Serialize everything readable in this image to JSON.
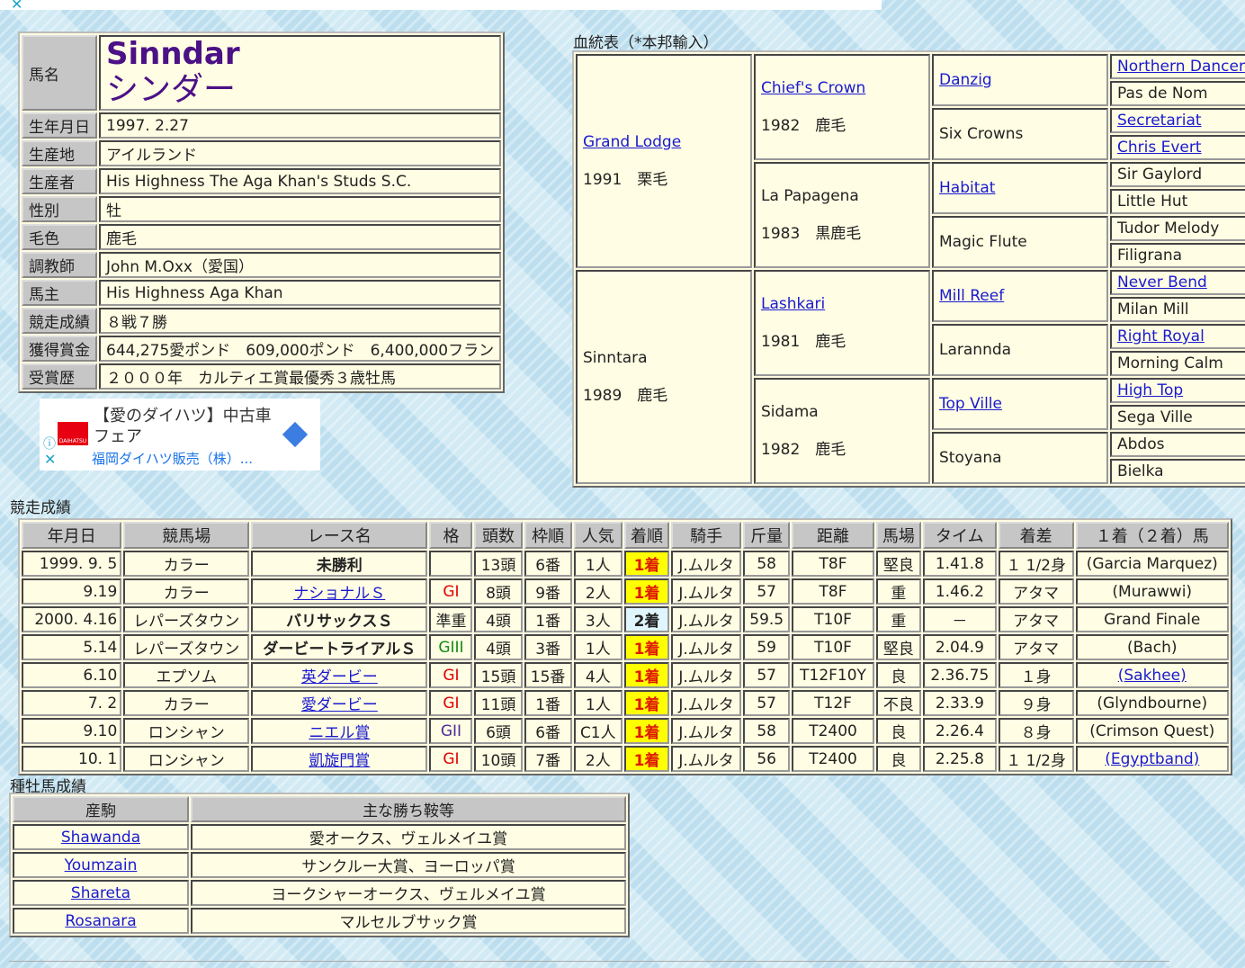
{
  "profile": {
    "name_label": "馬名",
    "name_en": "Sinndar",
    "name_ja": "シンダー",
    "rows": [
      {
        "label": "生年月日",
        "value": "1997. 2.27"
      },
      {
        "label": "生産地",
        "value": "アイルランド"
      },
      {
        "label": "生産者",
        "value": "His Highness The Aga Khan's Studs S.C."
      },
      {
        "label": "性別",
        "value": "牡"
      },
      {
        "label": "毛色",
        "value": "鹿毛"
      },
      {
        "label": "調教師",
        "value": "John M.Oxx（愛国）"
      },
      {
        "label": "馬主",
        "value": "His Highness Aga Khan"
      },
      {
        "label": "競走成績",
        "value": "８戦７勝"
      },
      {
        "label": "獲得賞金",
        "value": "644,275愛ポンド　609,000ポンド　6,400,000フラン"
      },
      {
        "label": "受賞歴",
        "value": "２０００年　カルティエ賞最優秀３歳牡馬"
      }
    ]
  },
  "ad": {
    "title": "【愛のダイハツ】中古車フェア",
    "sponsor": "福岡ダイハツ販売（株）...",
    "logo": "DAIHATSU"
  },
  "pedigree": {
    "title": "血統表（*本邦輸入）",
    "sire": {
      "name": "Grand Lodge",
      "info": "1991　栗毛"
    },
    "dam": {
      "name": "Sinntara",
      "info": "1989　鹿毛"
    },
    "g2": [
      {
        "name": "Chief's Crown",
        "info": "1982　鹿毛"
      },
      {
        "name": "La Papagena",
        "info": "1983　黒鹿毛"
      },
      {
        "name": "Lashkari",
        "info": "1981　鹿毛"
      },
      {
        "name": "Sidama",
        "info": "1982　鹿毛"
      }
    ],
    "g3": [
      "Danzig",
      "Six Crowns",
      "Habitat",
      "Magic Flute",
      "Mill Reef",
      "Larannda",
      "Top Ville",
      "Stoyana"
    ],
    "g4": [
      "Northern Dancer",
      "Pas de Nom",
      "Secretariat",
      "Chris Evert",
      "Sir Gaylord",
      "Little Hut",
      "Tudor Melody",
      "Filigrana",
      "Never Bend",
      "Milan Mill",
      "Right Royal",
      "Morning Calm",
      "High Top",
      "Sega Ville",
      "Abdos",
      "Bielka"
    ]
  },
  "race": {
    "title": "競走成績",
    "headers": [
      "年月日",
      "競馬場",
      "レース名",
      "格",
      "頭数",
      "枠順",
      "人気",
      "着順",
      "騎手",
      "斤量",
      "距離",
      "馬場",
      "タイム",
      "着差",
      "１着（２着）馬"
    ],
    "rows": [
      [
        "1999. 9. 5",
        "カラー",
        "未勝利",
        "",
        "13頭",
        "6番",
        "1人",
        "1着",
        "J.ムルタ",
        "58",
        "T8F",
        "堅良",
        "1.41.8",
        "１ 1/2身",
        "(Garcia Marquez)"
      ],
      [
        "9.19",
        "カラー",
        "ナショナルＳ",
        "GI",
        "8頭",
        "9番",
        "2人",
        "1着",
        "J.ムルタ",
        "57",
        "T8F",
        "重",
        "1.46.2",
        "アタマ",
        "(Murawwi)"
      ],
      [
        "2000. 4.16",
        "レパーズタウン",
        "バリサックスＳ",
        "準重",
        "4頭",
        "1番",
        "3人",
        "2着",
        "J.ムルタ",
        "59.5",
        "T10F",
        "重",
        "－",
        "アタマ",
        "Grand Finale"
      ],
      [
        "5.14",
        "レパーズタウン",
        "ダービートライアルＳ",
        "GIII",
        "4頭",
        "3番",
        "1人",
        "1着",
        "J.ムルタ",
        "59",
        "T10F",
        "堅良",
        "2.04.9",
        "アタマ",
        "(Bach)"
      ],
      [
        "6.10",
        "エプソム",
        "英ダービー",
        "GI",
        "15頭",
        "15番",
        "4人",
        "1着",
        "J.ムルタ",
        "57",
        "T12F10Y",
        "良",
        "2.36.75",
        "１身",
        "(Sakhee)"
      ],
      [
        "7. 2",
        "カラー",
        "愛ダービー",
        "GI",
        "11頭",
        "1番",
        "1人",
        "1着",
        "J.ムルタ",
        "57",
        "T12F",
        "不良",
        "2.33.9",
        "９身",
        "(Glyndbourne)"
      ],
      [
        "9.10",
        "ロンシャン",
        "ニエル賞",
        "GII",
        "6頭",
        "6番",
        "C1人",
        "1着",
        "J.ムルタ",
        "58",
        "T2400",
        "良",
        "2.26.4",
        "８身",
        "(Crimson Quest)"
      ],
      [
        "10. 1",
        "ロンシャン",
        "凱旋門賞",
        "GI",
        "10頭",
        "7番",
        "2人",
        "1着",
        "J.ムルタ",
        "56",
        "T2400",
        "良",
        "2.25.8",
        "１ 1/2身",
        "(Egyptband)"
      ]
    ],
    "race_links": [
      false,
      true,
      false,
      false,
      true,
      true,
      true,
      true
    ],
    "winner_links": [
      false,
      false,
      false,
      false,
      true,
      false,
      false,
      true
    ]
  },
  "sire_record": {
    "title": "種牡馬成績",
    "headers": [
      "産駒",
      "主な勝ち鞍等"
    ],
    "rows": [
      [
        "Shawanda",
        "愛オークス、ヴェルメイユ賞"
      ],
      [
        "Youmzain",
        "サンクルー大賞、ヨーロッパ賞"
      ],
      [
        "Shareta",
        "ヨークシャーオークス、ヴェルメイユ賞"
      ],
      [
        "Rosanara",
        "マルセルブサック賞"
      ]
    ]
  },
  "colors": {
    "name": "#4b1186",
    "link": "#1a1ad0",
    "gi": "#e00000",
    "giii": "#128a12",
    "gii": "#4b2a9a",
    "win_bg": "#ffff00",
    "win_text": "#e01a00",
    "second_bg": "#e0f6ff",
    "cell_bg": "#fffde3",
    "label_bg": "#c6c6c6"
  }
}
